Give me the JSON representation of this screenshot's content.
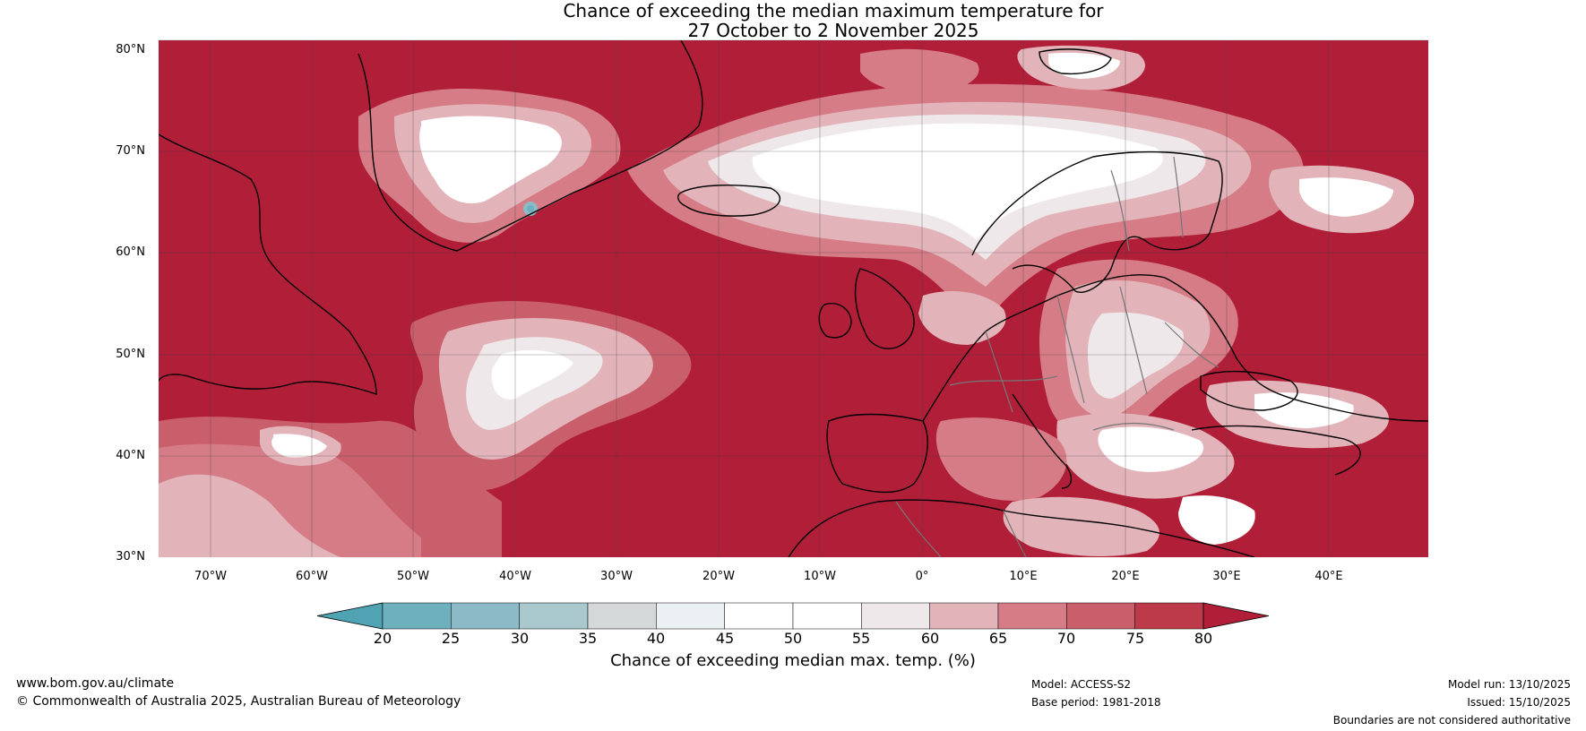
{
  "title": {
    "line1": "Chance of exceeding the median maximum temperature for",
    "line2": "27 October to 2 November 2025"
  },
  "map": {
    "latitude_labels": [
      "80°N",
      "70°N",
      "60°N",
      "50°N",
      "40°N",
      "30°N"
    ],
    "longitude_labels": [
      "70°W",
      "60°W",
      "50°W",
      "40°W",
      "30°W",
      "20°W",
      "10°W",
      "0°",
      "10°E",
      "20°E",
      "30°E",
      "40°E"
    ],
    "region": "North Atlantic, Greenland and Europe"
  },
  "colorbar": {
    "ticks": [
      "20",
      "25",
      "30",
      "35",
      "40",
      "45",
      "50",
      "55",
      "60",
      "65",
      "70",
      "75",
      "80"
    ],
    "colors": [
      "#4fa3b3",
      "#6fb0be",
      "#8cbac6",
      "#a9c9cf",
      "#d4d8d9",
      "#ebf0f2",
      "#ffffff",
      "#ffffff",
      "#eee8ea",
      "#e2b4ba",
      "#d57c86",
      "#c95f6b",
      "#bd3a4b",
      "#b01e38"
    ],
    "title": "Chance of exceeding median max. temp. (%)"
  },
  "footer": {
    "website": "www.bom.gov.au/climate",
    "copyright": "© Commonwealth of Australia 2025, Australian Bureau of Meteorology",
    "model": "Model: ACCESS-S2",
    "base_period": "Base period: 1981-2018",
    "model_run": "Model run: 13/10/2025",
    "issued": "Issued: 15/10/2025",
    "disclaimer": "Boundaries are not considered authoritative"
  }
}
